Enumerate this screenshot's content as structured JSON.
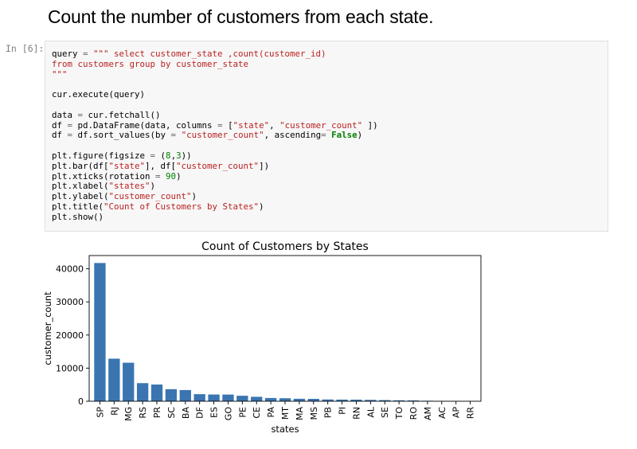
{
  "cell": {
    "heading": "Count the number of customers from each state.",
    "prompt": "In [6]:",
    "code_lines": [
      [
        {
          "t": "query "
        },
        {
          "t": "=",
          "c": "op"
        },
        {
          "t": " "
        },
        {
          "t": "\"\"\" select customer_state ,count(customer_id)",
          "c": "str"
        }
      ],
      [
        {
          "t": "from customers group by customer_state",
          "c": "str"
        }
      ],
      [
        {
          "t": "\"\"\"",
          "c": "str"
        }
      ],
      [],
      [
        {
          "t": "cur.execute(query)"
        }
      ],
      [],
      [
        {
          "t": "data "
        },
        {
          "t": "=",
          "c": "op"
        },
        {
          "t": " cur.fetchall()"
        }
      ],
      [
        {
          "t": "df "
        },
        {
          "t": "=",
          "c": "op"
        },
        {
          "t": " pd.DataFrame(data, columns "
        },
        {
          "t": "=",
          "c": "op"
        },
        {
          "t": " ["
        },
        {
          "t": "\"state\"",
          "c": "str"
        },
        {
          "t": ", "
        },
        {
          "t": "\"customer_count\"",
          "c": "str"
        },
        {
          "t": " ])"
        }
      ],
      [
        {
          "t": "df "
        },
        {
          "t": "=",
          "c": "op"
        },
        {
          "t": " df.sort_values(by "
        },
        {
          "t": "=",
          "c": "op"
        },
        {
          "t": " "
        },
        {
          "t": "\"customer_count\"",
          "c": "str"
        },
        {
          "t": ", ascending"
        },
        {
          "t": "=",
          "c": "op"
        },
        {
          "t": " "
        },
        {
          "t": "False",
          "c": "kw"
        },
        {
          "t": ")"
        }
      ],
      [],
      [
        {
          "t": "plt.figure(figsize "
        },
        {
          "t": "=",
          "c": "op"
        },
        {
          "t": " ("
        },
        {
          "t": "8",
          "c": "num"
        },
        {
          "t": ","
        },
        {
          "t": "3",
          "c": "num"
        },
        {
          "t": "))"
        }
      ],
      [
        {
          "t": "plt.bar(df["
        },
        {
          "t": "\"state\"",
          "c": "str"
        },
        {
          "t": "], df["
        },
        {
          "t": "\"customer_count\"",
          "c": "str"
        },
        {
          "t": "])"
        }
      ],
      [
        {
          "t": "plt.xticks(rotation "
        },
        {
          "t": "=",
          "c": "op"
        },
        {
          "t": " "
        },
        {
          "t": "90",
          "c": "num"
        },
        {
          "t": ")"
        }
      ],
      [
        {
          "t": "plt.xlabel("
        },
        {
          "t": "\"states\"",
          "c": "str"
        },
        {
          "t": ")"
        }
      ],
      [
        {
          "t": "plt.ylabel("
        },
        {
          "t": "\"customer_count\"",
          "c": "str"
        },
        {
          "t": ")"
        }
      ],
      [
        {
          "t": "plt.title("
        },
        {
          "t": "\"Count of Customers by States\"",
          "c": "str"
        },
        {
          "t": ")"
        }
      ],
      [
        {
          "t": "plt.show()"
        }
      ]
    ]
  },
  "chart_data": {
    "type": "bar",
    "title": "Count of Customers by States",
    "xlabel": "states",
    "ylabel": "customer_count",
    "ylim": [
      0,
      44000
    ],
    "yticks": [
      0,
      10000,
      20000,
      30000,
      40000
    ],
    "bar_color": "#3a75b0",
    "categories": [
      "SP",
      "RJ",
      "MG",
      "RS",
      "PR",
      "SC",
      "BA",
      "DF",
      "ES",
      "GO",
      "PE",
      "CE",
      "PA",
      "MT",
      "MA",
      "MS",
      "PB",
      "PI",
      "RN",
      "AL",
      "SE",
      "TO",
      "RO",
      "AM",
      "AC",
      "AP",
      "RR"
    ],
    "values": [
      41746,
      12852,
      11635,
      5466,
      5045,
      3637,
      3380,
      2140,
      2033,
      2020,
      1652,
      1336,
      975,
      907,
      747,
      715,
      536,
      495,
      485,
      413,
      350,
      280,
      253,
      148,
      81,
      68,
      46
    ]
  }
}
